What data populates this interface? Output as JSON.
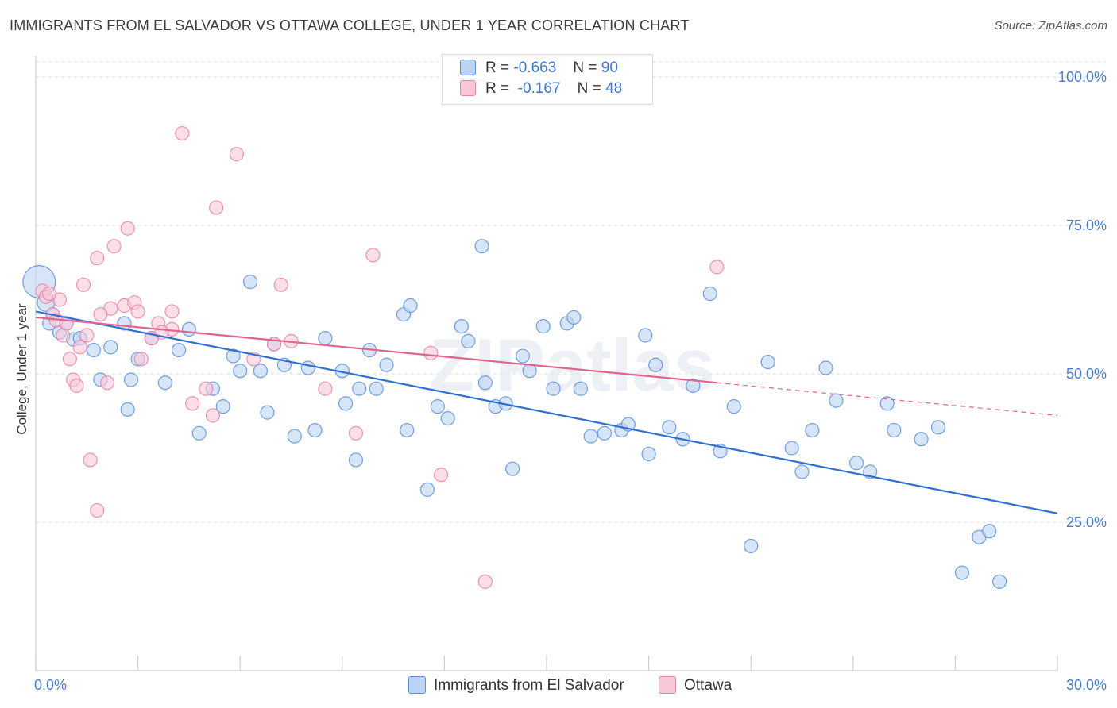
{
  "title": "IMMIGRANTS FROM EL SALVADOR VS OTTAWA COLLEGE, UNDER 1 YEAR CORRELATION CHART",
  "source": "Source: ZipAtlas.com",
  "watermark": "ZIPatlas",
  "colors": {
    "blue": "#5b8fd9",
    "blue_fill": "#bcd3f3",
    "blue_line": "#2e6fd0",
    "pink": "#e884a5",
    "pink_fill": "#f8c8d8",
    "pink_line": "#e0648e"
  },
  "legend": {
    "r_label": "R =",
    "n_label": "N =",
    "blue": {
      "r": "-0.663",
      "n": "90"
    },
    "pink": {
      "r": "-0.167",
      "n": "48"
    }
  },
  "bottom_legend": {
    "blue": "Immigrants from El Salvador",
    "pink": "Ottawa"
  },
  "chart_data": {
    "type": "scatter",
    "xlabel": "",
    "ylabel": "College, Under 1 year",
    "xlim": [
      0,
      30
    ],
    "ylim": [
      0,
      105
    ],
    "x_tick_labels": [
      "0.0%",
      "30.0%"
    ],
    "y_tick_labels": [
      "100.0%",
      "75.0%",
      "50.0%",
      "25.0%"
    ],
    "y_ticks": [
      100,
      75,
      50,
      25
    ],
    "grid": "horizontal-dashed",
    "series": [
      {
        "name": "Immigrants from El Salvador",
        "color": "#5b8fd9",
        "trend": {
          "x": [
            0,
            30
          ],
          "y": [
            60.5,
            26.5
          ]
        },
        "points": [
          [
            0.1,
            65.5,
            2.4
          ],
          [
            0.3,
            62.0,
            1.3
          ],
          [
            0.5,
            60.0,
            1
          ],
          [
            0.4,
            58.5,
            1
          ],
          [
            0.7,
            57.0,
            1
          ],
          [
            1.1,
            55.8,
            1
          ],
          [
            0.9,
            58.5,
            1
          ],
          [
            1.3,
            56.0,
            1
          ],
          [
            1.7,
            54.0,
            1
          ],
          [
            2.2,
            54.5,
            1
          ],
          [
            2.6,
            58.5,
            1
          ],
          [
            3.0,
            52.5,
            1
          ],
          [
            3.4,
            56.0,
            1
          ],
          [
            2.8,
            49.0,
            1
          ],
          [
            2.7,
            44.0,
            1
          ],
          [
            4.2,
            54.0,
            1
          ],
          [
            4.5,
            57.5,
            1
          ],
          [
            3.8,
            48.5,
            1
          ],
          [
            4.8,
            40.0,
            1
          ],
          [
            5.2,
            47.5,
            1
          ],
          [
            5.8,
            53.0,
            1
          ],
          [
            6.0,
            50.5,
            1
          ],
          [
            6.3,
            65.5,
            1
          ],
          [
            6.8,
            43.5,
            1
          ],
          [
            5.5,
            44.5,
            1
          ],
          [
            7.0,
            55.0,
            1
          ],
          [
            7.3,
            51.5,
            1
          ],
          [
            7.6,
            39.5,
            1
          ],
          [
            8.0,
            51.0,
            1
          ],
          [
            8.2,
            40.5,
            1
          ],
          [
            8.5,
            56.0,
            1
          ],
          [
            9.0,
            50.5,
            1
          ],
          [
            9.1,
            45.0,
            1
          ],
          [
            9.4,
            35.5,
            1
          ],
          [
            9.8,
            54.0,
            1
          ],
          [
            10.0,
            47.5,
            1
          ],
          [
            10.3,
            51.5,
            1
          ],
          [
            10.8,
            60.0,
            1
          ],
          [
            11.0,
            61.5,
            1
          ],
          [
            10.9,
            40.5,
            1
          ],
          [
            11.5,
            30.5,
            1
          ],
          [
            11.8,
            44.5,
            1
          ],
          [
            12.1,
            42.5,
            1
          ],
          [
            12.5,
            58.0,
            1
          ],
          [
            12.7,
            55.5,
            1
          ],
          [
            13.1,
            71.5,
            1
          ],
          [
            13.2,
            48.5,
            1
          ],
          [
            13.5,
            44.5,
            1
          ],
          [
            13.8,
            45.0,
            1
          ],
          [
            14.0,
            34.0,
            1
          ],
          [
            14.3,
            53.0,
            1
          ],
          [
            14.5,
            50.5,
            1
          ],
          [
            14.9,
            58.0,
            1
          ],
          [
            15.2,
            47.5,
            1
          ],
          [
            15.6,
            58.5,
            1
          ],
          [
            15.8,
            59.5,
            1
          ],
          [
            16.3,
            39.5,
            1
          ],
          [
            16.7,
            40.0,
            1
          ],
          [
            17.2,
            40.5,
            1
          ],
          [
            17.4,
            41.5,
            1
          ],
          [
            17.9,
            56.5,
            1
          ],
          [
            18.2,
            51.5,
            1
          ],
          [
            18.6,
            41.0,
            1
          ],
          [
            19.0,
            39.0,
            1
          ],
          [
            19.3,
            48.0,
            1
          ],
          [
            19.8,
            63.5,
            1
          ],
          [
            20.1,
            37.0,
            1
          ],
          [
            20.5,
            44.5,
            1
          ],
          [
            21.0,
            21.0,
            1
          ],
          [
            21.5,
            52.0,
            1
          ],
          [
            22.2,
            37.5,
            1
          ],
          [
            22.8,
            40.5,
            1
          ],
          [
            23.2,
            51.0,
            1
          ],
          [
            22.5,
            33.5,
            1
          ],
          [
            23.5,
            45.5,
            1
          ],
          [
            24.1,
            35.0,
            1
          ],
          [
            24.5,
            33.5,
            1
          ],
          [
            25.0,
            45.0,
            1
          ],
          [
            25.2,
            40.5,
            1
          ],
          [
            26.0,
            39.0,
            1
          ],
          [
            27.2,
            16.5,
            1
          ],
          [
            27.7,
            22.5,
            1
          ],
          [
            28.0,
            23.5,
            1
          ],
          [
            28.3,
            15.0,
            1
          ],
          [
            26.5,
            41.0,
            1
          ],
          [
            18.0,
            36.5,
            1
          ],
          [
            16.0,
            47.5,
            1
          ],
          [
            9.5,
            47.5,
            1
          ],
          [
            6.6,
            50.5,
            1
          ],
          [
            1.9,
            49.0,
            1
          ]
        ]
      },
      {
        "name": "Ottawa",
        "color": "#e884a5",
        "trend": {
          "x": [
            0,
            20
          ],
          "y": [
            59.5,
            48.5
          ],
          "dashed_to": {
            "x": 30,
            "y": 43.0
          }
        },
        "points": [
          [
            0.2,
            64.0,
            1
          ],
          [
            0.3,
            63.0,
            1
          ],
          [
            0.5,
            60.0,
            1
          ],
          [
            0.6,
            59.0,
            1
          ],
          [
            0.7,
            62.5,
            1
          ],
          [
            0.8,
            56.5,
            1
          ],
          [
            0.9,
            58.5,
            1
          ],
          [
            1.0,
            52.5,
            1
          ],
          [
            1.1,
            49.0,
            1
          ],
          [
            1.2,
            48.0,
            1
          ],
          [
            1.3,
            54.5,
            1
          ],
          [
            1.4,
            65.0,
            1
          ],
          [
            1.5,
            56.5,
            1
          ],
          [
            1.6,
            35.5,
            1
          ],
          [
            1.8,
            27.0,
            1
          ],
          [
            1.8,
            69.5,
            1
          ],
          [
            2.1,
            48.5,
            1
          ],
          [
            2.3,
            71.5,
            1
          ],
          [
            2.6,
            61.5,
            1
          ],
          [
            2.7,
            74.5,
            1
          ],
          [
            2.9,
            62.0,
            1
          ],
          [
            3.0,
            60.5,
            1
          ],
          [
            3.1,
            52.5,
            1
          ],
          [
            3.4,
            56.0,
            1
          ],
          [
            3.6,
            58.5,
            1
          ],
          [
            4.0,
            60.5,
            1
          ],
          [
            4.3,
            90.5,
            1
          ],
          [
            4.6,
            45.0,
            1
          ],
          [
            5.0,
            47.5,
            1
          ],
          [
            5.2,
            43.0,
            1
          ],
          [
            5.3,
            78.0,
            1
          ],
          [
            5.9,
            87.0,
            1
          ],
          [
            6.4,
            52.5,
            1
          ],
          [
            7.0,
            55.0,
            1
          ],
          [
            7.2,
            65.0,
            1
          ],
          [
            7.5,
            55.5,
            1
          ],
          [
            8.5,
            47.5,
            1
          ],
          [
            9.4,
            40.0,
            1
          ],
          [
            9.9,
            70.0,
            1
          ],
          [
            11.6,
            53.5,
            1
          ],
          [
            11.9,
            33.0,
            1
          ],
          [
            13.2,
            15.0,
            1
          ],
          [
            4.0,
            57.5,
            1
          ],
          [
            2.2,
            61.0,
            1
          ],
          [
            0.4,
            63.5,
            1
          ],
          [
            1.9,
            60.0,
            1
          ],
          [
            20.0,
            68.0,
            1
          ],
          [
            3.7,
            57.0,
            1
          ]
        ]
      }
    ]
  }
}
